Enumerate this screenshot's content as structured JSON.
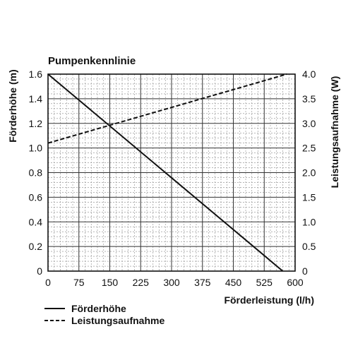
{
  "chart_data": {
    "type": "line",
    "title": "Pumpenkennlinie",
    "xlabel": "Förderleistung (l/h)",
    "ylabel_left": "Förderhöhe (m)",
    "ylabel_right": "Leistungsaufnahme (W)",
    "xlim": [
      0,
      600
    ],
    "ylim_left": [
      0,
      1.6
    ],
    "ylim_right": [
      0,
      4.0
    ],
    "x_ticks": [
      "0",
      "75",
      "150",
      "225",
      "300",
      "375",
      "450",
      "525",
      "600"
    ],
    "y_ticks_left": [
      "0",
      "0.2",
      "0.4",
      "0.6",
      "0.8",
      "1.0",
      "1.2",
      "1.4",
      "1.6"
    ],
    "y_ticks_right": [
      "0",
      "0.5",
      "1.0",
      "1.5",
      "2.0",
      "2.5",
      "3.0",
      "3.5",
      "4.0"
    ],
    "grid": true,
    "legend_position": "bottom-left",
    "series": [
      {
        "name": "Förderhöhe",
        "axis": "left",
        "style": "solid",
        "color": "#111111",
        "x": [
          0,
          570
        ],
        "y": [
          1.6,
          0
        ]
      },
      {
        "name": "Leistungsaufnahme",
        "axis": "right",
        "style": "dashed",
        "color": "#111111",
        "x": [
          0,
          580
        ],
        "y": [
          2.6,
          4.0
        ]
      }
    ]
  }
}
